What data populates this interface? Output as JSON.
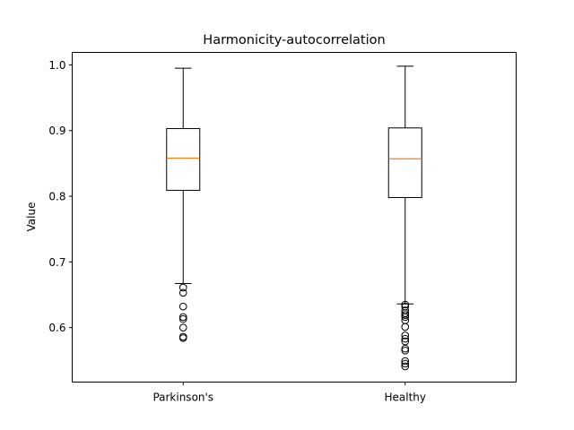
{
  "chart_data": {
    "type": "box",
    "title": "Harmonicity-autocorrelation",
    "xlabel": "",
    "ylabel": "Value",
    "ylim": [
      0.517,
      1.019
    ],
    "yticks": [
      0.6,
      0.7,
      0.8,
      0.9,
      1.0
    ],
    "ytick_labels": [
      "0.6",
      "0.7",
      "0.8",
      "0.9",
      "1.0"
    ],
    "categories": [
      "Parkinson's",
      "Healthy"
    ],
    "grid": false,
    "colors": {
      "box": "#000000",
      "median": "#ff7f0e",
      "background": "#ffffff"
    },
    "boxes": [
      {
        "label": "Parkinson's",
        "whisker_low": 0.667,
        "q1": 0.809,
        "median": 0.858,
        "q3": 0.903,
        "whisker_high": 0.995,
        "outliers": [
          0.661,
          0.653,
          0.632,
          0.616,
          0.613,
          0.6,
          0.586,
          0.584
        ]
      },
      {
        "label": "Healthy",
        "whisker_low": 0.636,
        "q1": 0.798,
        "median": 0.857,
        "q3": 0.904,
        "whisker_high": 0.998,
        "outliers": [
          0.635,
          0.632,
          0.626,
          0.622,
          0.619,
          0.616,
          0.611,
          0.601,
          0.588,
          0.583,
          0.579,
          0.568,
          0.565,
          0.549,
          0.545,
          0.541
        ]
      }
    ]
  }
}
